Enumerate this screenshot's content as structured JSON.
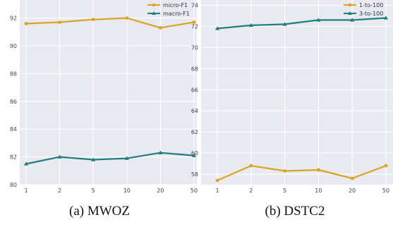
{
  "chart_data": [
    {
      "type": "line",
      "panel_caption": "(a)  MWOZ",
      "categories": [
        "1",
        "2",
        "5",
        "10",
        "20",
        "50"
      ],
      "series": [
        {
          "name": "micro-F1",
          "color": "#d9a326",
          "marker": "circle",
          "values": [
            91.6,
            91.7,
            91.9,
            92.0,
            91.3,
            91.7
          ]
        },
        {
          "name": "macro-F1",
          "color": "#1f7f7f",
          "marker": "triangle",
          "values": [
            81.5,
            82.0,
            81.8,
            81.9,
            82.3,
            82.1
          ]
        }
      ],
      "yticks": [
        80,
        82,
        84,
        86,
        88,
        90,
        92
      ],
      "ylim": [
        80,
        93.3
      ],
      "grid": true,
      "legend": "top-right"
    },
    {
      "type": "line",
      "panel_caption": "(b)  DSTC2",
      "categories": [
        "1",
        "2",
        "5",
        "10",
        "20",
        "50"
      ],
      "series": [
        {
          "name": "1-to-100",
          "color": "#d9a326",
          "marker": "circle",
          "values": [
            57.4,
            58.8,
            58.3,
            58.4,
            57.6,
            58.8
          ]
        },
        {
          "name": "3-to-100",
          "color": "#1f7f7f",
          "marker": "triangle",
          "values": [
            71.8,
            72.1,
            72.2,
            72.6,
            72.6,
            72.8
          ]
        }
      ],
      "yticks": [
        58,
        60,
        62,
        64,
        66,
        68,
        70,
        72,
        74
      ],
      "ylim": [
        57,
        74.5
      ],
      "grid": true,
      "legend": "top-right"
    }
  ]
}
